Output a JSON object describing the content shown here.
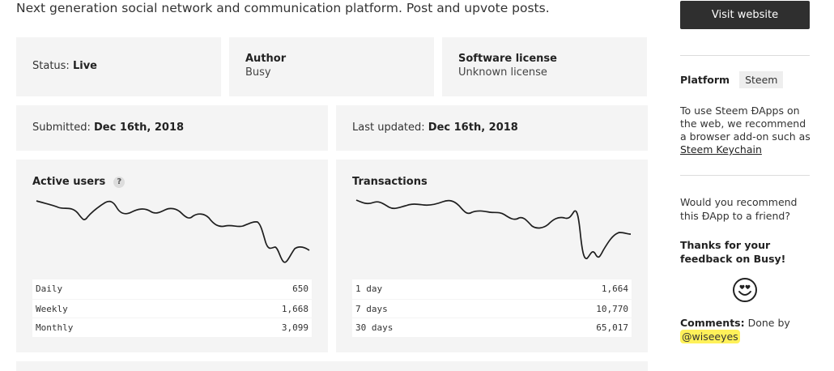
{
  "tagline": "Next generation social network and communication platform. Post and upvote posts.",
  "info": {
    "status_label": "Status:",
    "status_value": "Live",
    "author_label": "Author",
    "author_value": "Busy",
    "license_label": "Software license",
    "license_value": "Unknown license",
    "submitted_label": "Submitted:",
    "submitted_value": "Dec 16th, 2018",
    "updated_label": "Last updated:",
    "updated_value": "Dec 16th, 2018"
  },
  "active_users": {
    "title": "Active users",
    "help": "?",
    "rows": [
      {
        "label": "Daily",
        "value": "650"
      },
      {
        "label": "Weekly",
        "value": "1,668"
      },
      {
        "label": "Monthly",
        "value": "3,099"
      }
    ]
  },
  "transactions": {
    "title": "Transactions",
    "rows": [
      {
        "label": "1 day",
        "value": "1,664"
      },
      {
        "label": "7 days",
        "value": "10,770"
      },
      {
        "label": "30 days",
        "value": "65,017"
      }
    ]
  },
  "sidebar": {
    "visit_button": "Visit website",
    "platform_label": "Platform",
    "platform_value": "Steem",
    "note_text": "To use Steem ĐApps on the web, we recommend a browser add-on such as",
    "note_link": "Steem Keychain",
    "recommend_question": "Would you recommend this ĐApp to a friend?",
    "feedback_thanks": "Thanks for your feedback on Busy!",
    "feedback_icon": "heart-eyes-smiley-icon",
    "comments_label": "Comments:",
    "comments_text": "Done by",
    "comments_user": "@wiseeyes",
    "highlight_color": "#fff15a"
  }
}
